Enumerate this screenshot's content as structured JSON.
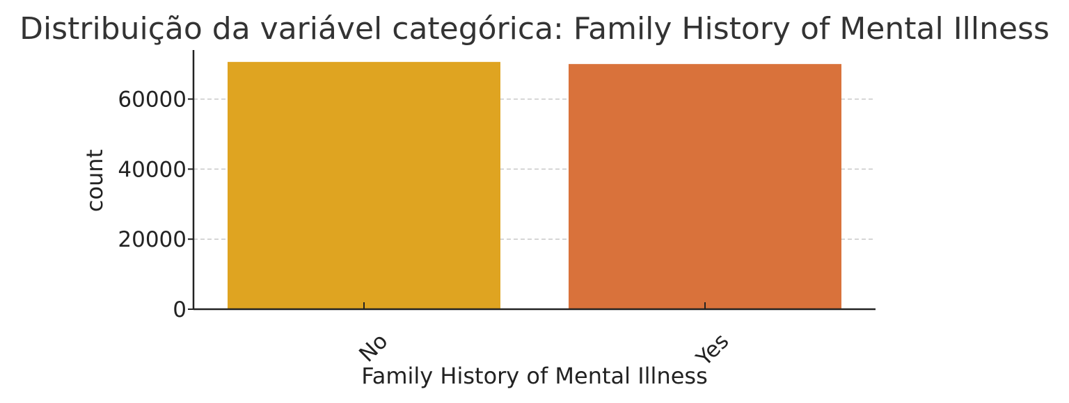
{
  "chart_data": {
    "type": "bar",
    "title": "Distribuição da variável categórica: Family History of Mental Illness",
    "xlabel": "Family History of Mental Illness",
    "ylabel": "count",
    "categories": [
      "No",
      "Yes"
    ],
    "values": [
      70600,
      70000
    ],
    "colors": [
      "#dfa421",
      "#d9723b"
    ],
    "ylim": [
      0,
      74000
    ],
    "yticks": [
      0,
      20000,
      40000,
      60000
    ],
    "ytick_labels": [
      "0",
      "20000",
      "40000",
      "60000"
    ],
    "grid": true,
    "grid_axis": "y",
    "legend": "none",
    "xtick_rotation": -45
  }
}
